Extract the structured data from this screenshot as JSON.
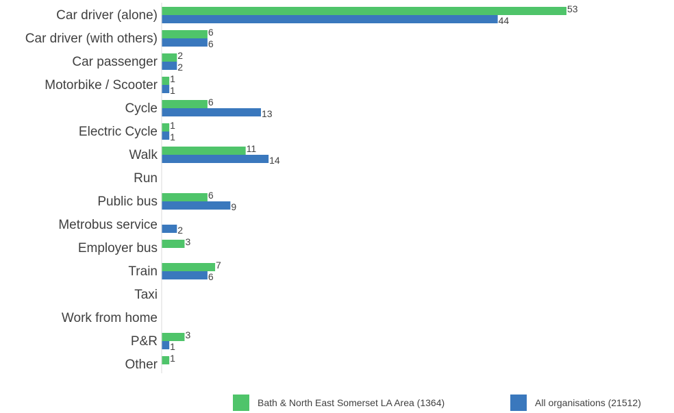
{
  "chart_data": {
    "type": "bar",
    "orientation": "horizontal",
    "categories": [
      "Car driver (alone)",
      "Car driver (with others)",
      "Car passenger",
      "Motorbike / Scooter",
      "Cycle",
      "Electric Cycle",
      "Walk",
      "Run",
      "Public bus",
      "Metrobus service",
      "Employer bus",
      "Train",
      "Taxi",
      "Work from home",
      "P&R",
      "Other"
    ],
    "series": [
      {
        "name": "Bath & North East Somerset LA Area (1364)",
        "color": "#4fc46a",
        "values": [
          53,
          6,
          2,
          1,
          6,
          1,
          11,
          null,
          6,
          null,
          3,
          7,
          null,
          null,
          3,
          1
        ]
      },
      {
        "name": "All organisations (21512)",
        "color": "#3a78bd",
        "values": [
          44,
          6,
          2,
          1,
          13,
          1,
          14,
          null,
          9,
          2,
          null,
          6,
          null,
          null,
          1,
          null
        ]
      }
    ],
    "xlim": [
      0,
      53
    ],
    "grid": false,
    "legend_position": "bottom-right"
  }
}
